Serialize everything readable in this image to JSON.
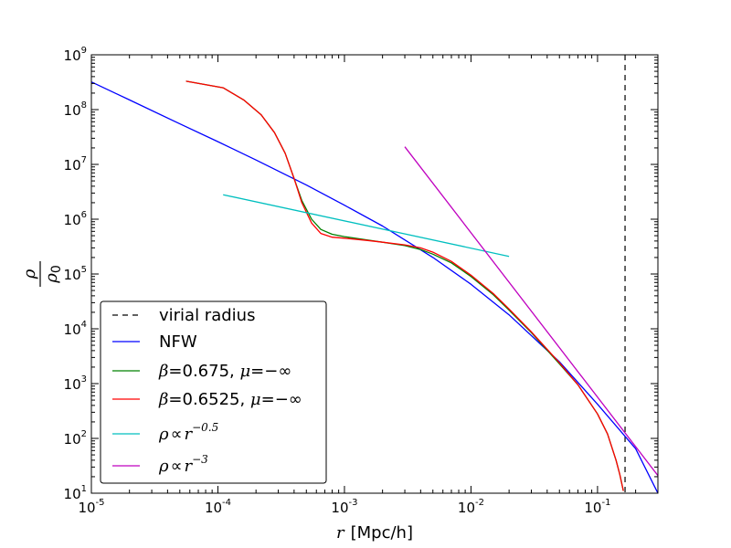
{
  "chart_data": {
    "type": "line",
    "x_scale": "log",
    "y_scale": "log",
    "xlim": [
      1e-05,
      0.3
    ],
    "ylim": [
      10,
      1000000000.0
    ],
    "x_ticks": [
      {
        "base": "10",
        "exp": "-5",
        "value": 1e-05
      },
      {
        "base": "10",
        "exp": "-4",
        "value": 0.0001
      },
      {
        "base": "10",
        "exp": "-3",
        "value": 0.001
      },
      {
        "base": "10",
        "exp": "-2",
        "value": 0.01
      },
      {
        "base": "10",
        "exp": "-1",
        "value": 0.1
      }
    ],
    "y_ticks": [
      {
        "base": "10",
        "exp": "1",
        "value": 10
      },
      {
        "base": "10",
        "exp": "2",
        "value": 100
      },
      {
        "base": "10",
        "exp": "3",
        "value": 1000
      },
      {
        "base": "10",
        "exp": "4",
        "value": 10000
      },
      {
        "base": "10",
        "exp": "5",
        "value": 100000
      },
      {
        "base": "10",
        "exp": "6",
        "value": 1000000
      },
      {
        "base": "10",
        "exp": "7",
        "value": 10000000
      },
      {
        "base": "10",
        "exp": "8",
        "value": 100000000
      },
      {
        "base": "10",
        "exp": "9",
        "value": 1000000000
      }
    ],
    "xlabel": {
      "var": "r",
      "unit": "[Mpc/h]"
    },
    "ylabel": {
      "num": "ρ",
      "den": "ρ",
      "den_sub": "0"
    },
    "legend_position": "lower-left",
    "legend": [
      {
        "id": "virial",
        "label": "virial radius",
        "color": "#000000",
        "dashed": true
      },
      {
        "id": "nfw",
        "label": "NFW",
        "color": "#0000ff"
      },
      {
        "id": "beta1",
        "label_parts": [
          "β",
          "=0.675, ",
          "μ",
          "=−∞"
        ],
        "color": "#008000"
      },
      {
        "id": "beta2",
        "label_parts": [
          "β",
          "=0.6525, ",
          "μ",
          "=−∞"
        ],
        "color": "#ff0000"
      },
      {
        "id": "p05",
        "label_parts": [
          "ρ",
          "∝",
          "r",
          "−0.5"
        ],
        "color": "#00bfbf"
      },
      {
        "id": "p3",
        "label_parts": [
          "ρ",
          "∝",
          "r",
          "−3"
        ],
        "color": "#bf00bf"
      }
    ],
    "series": [
      {
        "name": "virial radius",
        "color": "#000000",
        "dashed": true,
        "vline_x": 0.165
      },
      {
        "name": "NFW",
        "color": "#0000ff",
        "x": [
          1e-05,
          2e-05,
          5e-05,
          0.0001,
          0.0002,
          0.0005,
          0.001,
          0.002,
          0.005,
          0.01,
          0.02,
          0.05,
          0.1,
          0.2,
          0.3
        ],
        "y": [
          320000000.0,
          150000000.0,
          55000000.0,
          26000000.0,
          12000000.0,
          4200000.0,
          1800000.0,
          750000.0,
          200000.0,
          65000.0,
          18000.0,
          2500.0,
          420.0,
          65.0,
          10.0
        ]
      },
      {
        "name": "β=0.675, μ=−∞",
        "color": "#008000",
        "x": [
          5.6e-05,
          0.00011,
          0.00016,
          0.00022,
          0.00028,
          0.00034,
          0.0004,
          0.00046,
          0.00055,
          0.00065,
          0.0008,
          0.001,
          0.0015,
          0.002,
          0.003,
          0.004,
          0.005,
          0.007,
          0.01,
          0.015,
          0.02,
          0.03,
          0.05,
          0.07,
          0.1,
          0.12,
          0.14,
          0.15,
          0.16
        ],
        "y": [
          330000000.0,
          250000000.0,
          150000000.0,
          80000000.0,
          38000000.0,
          16000000.0,
          5500000.0,
          2200000.0,
          1000000.0,
          650000.0,
          530000.0,
          480000.0,
          420000.0,
          380000.0,
          330000.0,
          280000.0,
          230000.0,
          160000.0,
          90000.0,
          42000.0,
          22000.0,
          8500.0,
          2300.0,
          950.0,
          280.0,
          120.0,
          40.0,
          22.0,
          11.0
        ]
      },
      {
        "name": "β=0.6525, μ=−∞",
        "color": "#ff0000",
        "x": [
          5.6e-05,
          0.00011,
          0.00016,
          0.00022,
          0.00028,
          0.00034,
          0.0004,
          0.00046,
          0.00055,
          0.00065,
          0.0008,
          0.001,
          0.0015,
          0.002,
          0.003,
          0.004,
          0.005,
          0.007,
          0.01,
          0.015,
          0.02,
          0.03,
          0.05,
          0.07,
          0.1,
          0.12,
          0.14,
          0.15,
          0.16
        ],
        "y": [
          330000000.0,
          250000000.0,
          150000000.0,
          80000000.0,
          38000000.0,
          16000000.0,
          5500000.0,
          2000000.0,
          850000.0,
          550000.0,
          470000.0,
          450000.0,
          410000.0,
          380000.0,
          340000.0,
          300000.0,
          250000.0,
          170000.0,
          95000.0,
          44000.0,
          23000.0,
          8800.0,
          2400.0,
          950.0,
          280.0,
          120.0,
          40.0,
          22.0,
          11.0
        ]
      },
      {
        "name": "ρ∝r^−0.5",
        "color": "#00bfbf",
        "x": [
          0.00011,
          0.02
        ],
        "y": [
          2800000.0,
          210000.0
        ]
      },
      {
        "name": "ρ∝r^−3",
        "color": "#bf00bf",
        "x": [
          0.003,
          0.3
        ],
        "y": [
          21000000.0,
          21.0
        ]
      }
    ]
  }
}
